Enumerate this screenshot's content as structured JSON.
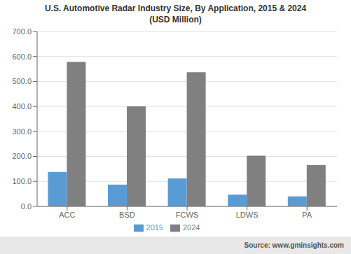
{
  "chart_data": {
    "type": "bar",
    "title": "U.S. Automotive Radar Industry Size, By Application, 2015 & 2024\n(USD Million)",
    "categories": [
      "ACC",
      "BSD",
      "FCWS",
      "LDWS",
      "PA"
    ],
    "series": [
      {
        "name": "2015",
        "color": "#5b9bd5",
        "values": [
          138,
          87,
          112,
          47,
          40
        ]
      },
      {
        "name": "2024",
        "color": "#808080",
        "values": [
          578,
          400,
          537,
          203,
          165
        ]
      }
    ],
    "ylim": [
      0,
      700
    ],
    "yticks": [
      {
        "value": 0,
        "label": "0.0"
      },
      {
        "value": 100,
        "label": "100.0"
      },
      {
        "value": 200,
        "label": "200.0"
      },
      {
        "value": 300,
        "label": "300.0"
      },
      {
        "value": 400,
        "label": "400.0"
      },
      {
        "value": 500,
        "label": "500.0"
      },
      {
        "value": 600,
        "label": "600.0"
      },
      {
        "value": 700,
        "label": "700.0"
      }
    ],
    "grid": true,
    "legend": "bottom",
    "annotations": [
      "Source: www.gminsights.com"
    ]
  }
}
